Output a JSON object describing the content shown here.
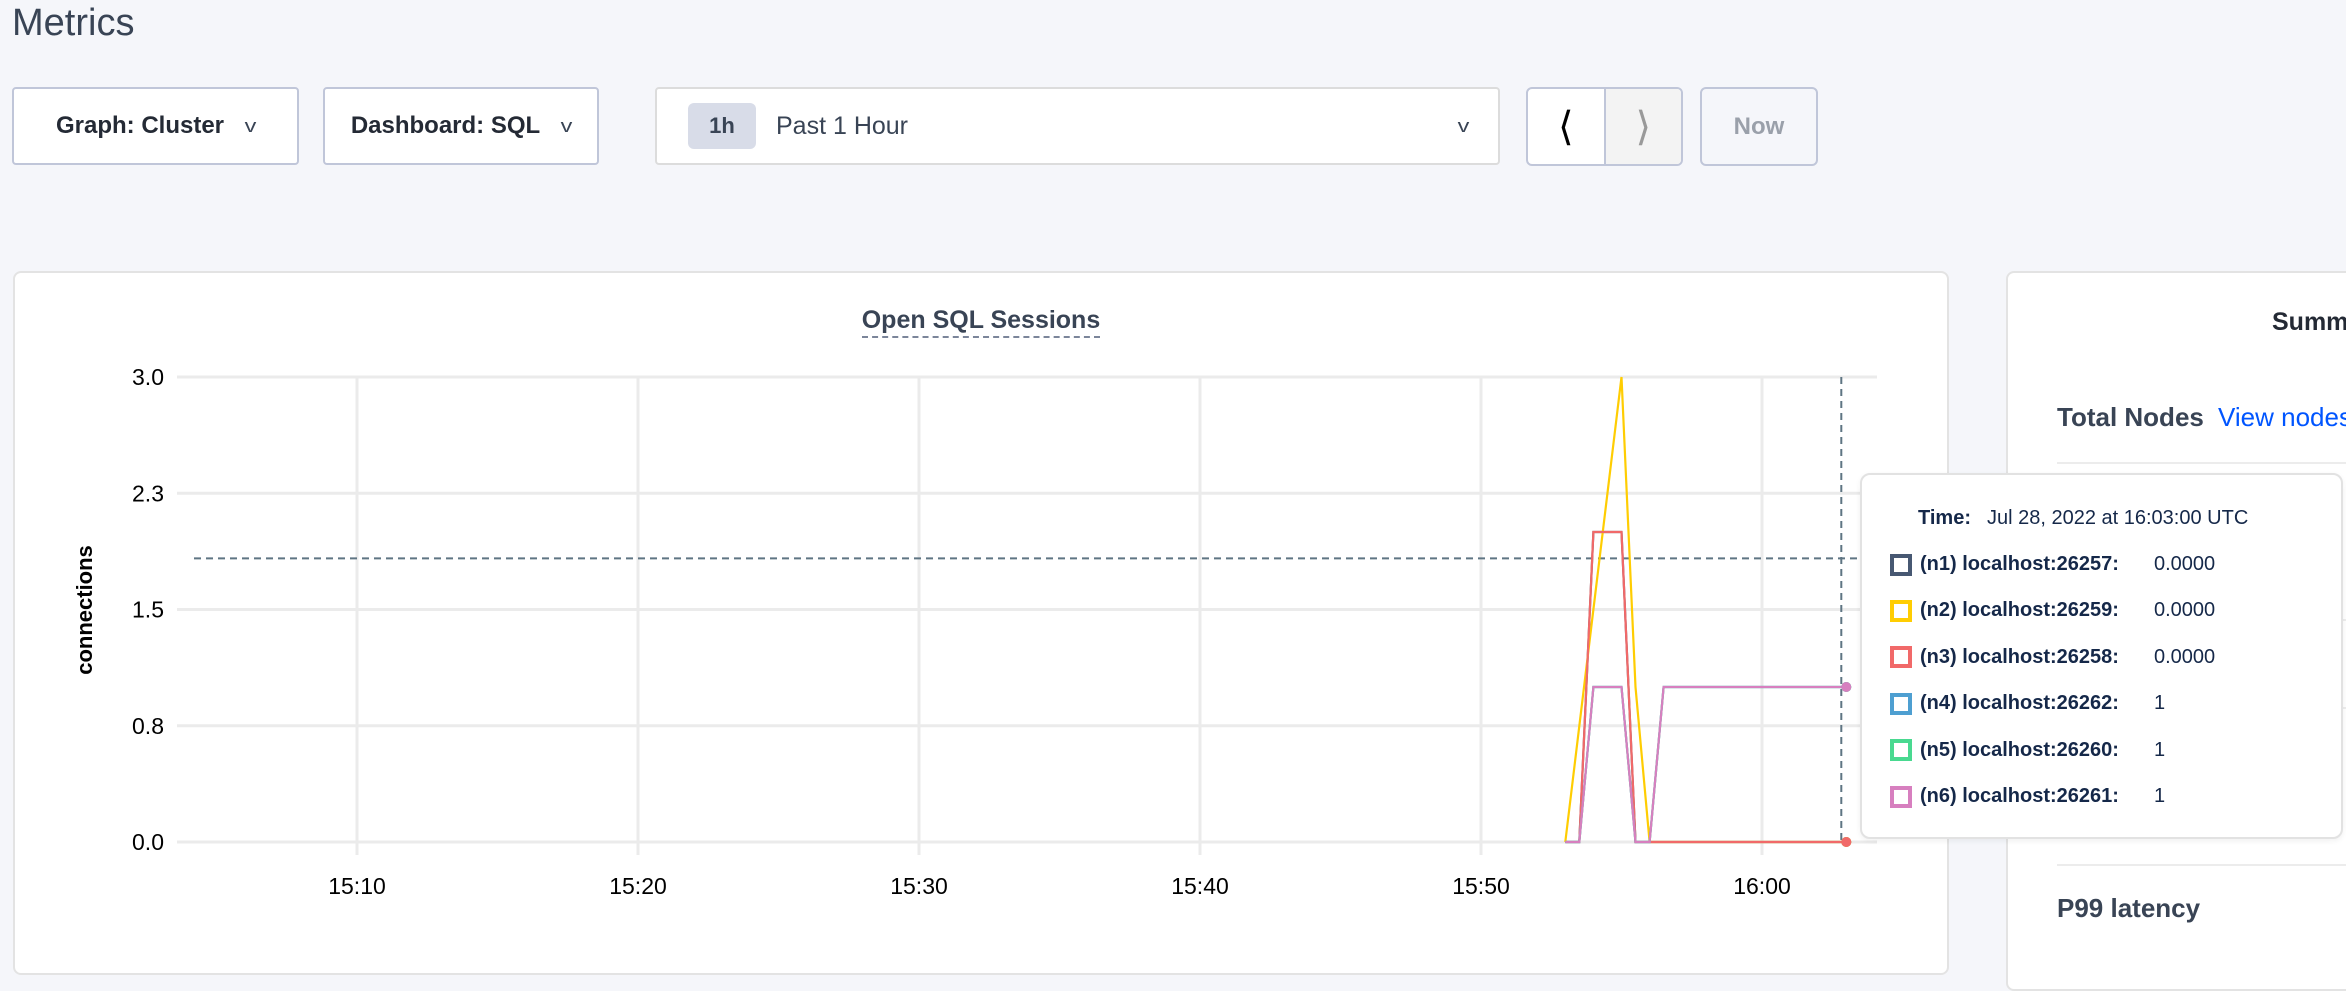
{
  "page": {
    "title": "Metrics"
  },
  "controls": {
    "graph_select": "Graph: Cluster",
    "dashboard_select": "Dashboard: SQL",
    "time_badge": "1h",
    "time_range": "Past 1 Hour",
    "prev_icon": "chevron-left-icon",
    "next_icon": "chevron-right-icon",
    "now_label": "Now"
  },
  "summary": {
    "title": "Summ",
    "total_nodes_label": "Total Nodes",
    "view_nodes_link": "View nodes",
    "p99_label": "P99 latency"
  },
  "tooltip": {
    "time_label": "Time:",
    "time_value": "Jul 28, 2022 at 16:03:00 UTC",
    "rows": [
      {
        "name": "(n1) localhost:26257:",
        "value": "0.0000",
        "color": "#475872"
      },
      {
        "name": "(n2) localhost:26259:",
        "value": "0.0000",
        "color": "#ffcd02"
      },
      {
        "name": "(n3) localhost:26258:",
        "value": "0.0000",
        "color": "#f16969"
      },
      {
        "name": "(n4) localhost:26262:",
        "value": "1",
        "color": "#4e9fd1"
      },
      {
        "name": "(n5) localhost:26260:",
        "value": "1",
        "color": "#49d990"
      },
      {
        "name": "(n6) localhost:26261:",
        "value": "1",
        "color": "#d77fbf"
      }
    ]
  },
  "chart_data": {
    "type": "line",
    "title": "Open SQL Sessions",
    "ylabel": "connections",
    "xlabel": "",
    "ylim": [
      0,
      3.0
    ],
    "yticks": [
      "0.0",
      "0.8",
      "1.5",
      "2.3",
      "3.0"
    ],
    "xticks": [
      "15:10",
      "15:20",
      "15:30",
      "15:40",
      "15:50",
      "16:00"
    ],
    "xlim": [
      "15:03:30",
      "16:04:00"
    ],
    "grid": true,
    "hover": {
      "time": "16:03:00",
      "value": 1.83
    },
    "series": [
      {
        "name": "(n1) localhost:26257",
        "color": "#475872",
        "x": [
          "15:53:00",
          "15:53:30",
          "15:54:00",
          "15:55:00",
          "15:55:30",
          "16:03:00"
        ],
        "y": [
          0,
          0,
          2,
          2,
          0,
          0
        ]
      },
      {
        "name": "(n2) localhost:26259",
        "color": "#ffcd02",
        "x": [
          "15:53:00",
          "15:55:00",
          "15:55:30",
          "15:56:00",
          "16:03:00"
        ],
        "y": [
          0,
          3,
          1,
          0,
          0
        ]
      },
      {
        "name": "(n3) localhost:26258",
        "color": "#f16969",
        "x": [
          "15:53:00",
          "15:53:30",
          "15:54:00",
          "15:55:00",
          "15:55:30",
          "16:03:00"
        ],
        "y": [
          0,
          0,
          2,
          2,
          0,
          0
        ]
      },
      {
        "name": "(n4) localhost:26262",
        "color": "#4e9fd1",
        "x": [
          "15:53:00",
          "15:53:30",
          "15:54:00",
          "15:55:00",
          "15:55:30",
          "15:56:00",
          "15:56:30",
          "16:03:00"
        ],
        "y": [
          0,
          0,
          1,
          1,
          0,
          0,
          1,
          1
        ]
      },
      {
        "name": "(n5) localhost:26260",
        "color": "#49d990",
        "x": [
          "15:53:00",
          "15:53:30",
          "15:54:00",
          "15:55:00",
          "15:55:30",
          "15:56:00",
          "15:56:30",
          "16:03:00"
        ],
        "y": [
          0,
          0,
          1,
          1,
          0,
          0,
          1,
          1
        ]
      },
      {
        "name": "(n6) localhost:26261",
        "color": "#d77fbf",
        "x": [
          "15:53:00",
          "15:53:30",
          "15:54:00",
          "15:55:00",
          "15:55:30",
          "15:56:00",
          "15:56:30",
          "16:03:00"
        ],
        "y": [
          0,
          0,
          1,
          1,
          0,
          0,
          1,
          1
        ]
      }
    ]
  }
}
